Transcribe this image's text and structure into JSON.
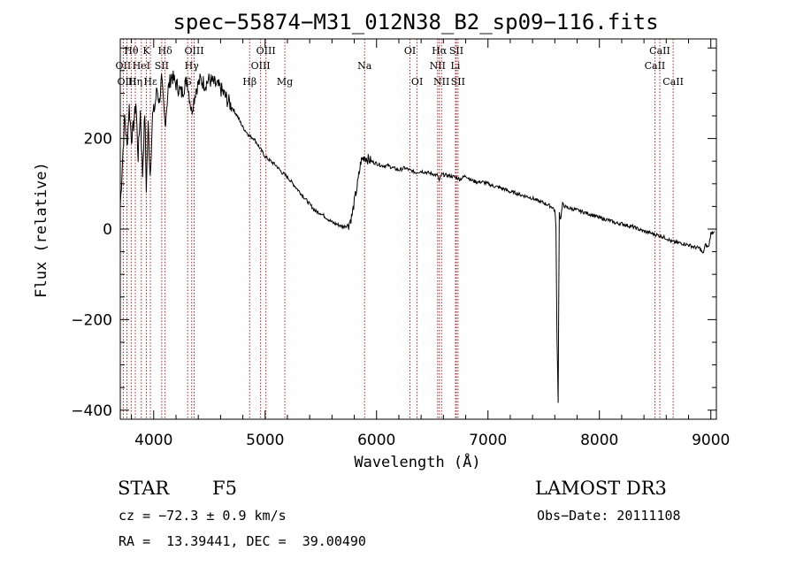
{
  "chart_data": {
    "type": "line",
    "title": "spec−55874−M31_012N38_B2_sp09−116.fits",
    "xlabel": "Wavelength (Å)",
    "ylabel": "Flux (relative)",
    "xlim": [
      3700,
      9050
    ],
    "ylim": [
      -420,
      420
    ],
    "xticks": [
      4000,
      5000,
      6000,
      7000,
      8000,
      9000
    ],
    "yticks": [
      -400,
      -200,
      0,
      200
    ],
    "ytick_labels": [
      "−400",
      "−200",
      "0",
      "200"
    ],
    "grid": false,
    "series": [
      {
        "name": "flux",
        "x": [
          3700,
          3720,
          3740,
          3760,
          3780,
          3800,
          3820,
          3840,
          3860,
          3880,
          3900,
          3920,
          3933,
          3950,
          3968,
          3990,
          4010,
          4030,
          4050,
          4070,
          4102,
          4130,
          4160,
          4200,
          4250,
          4300,
          4340,
          4380,
          4420,
          4460,
          4500,
          4550,
          4600,
          4650,
          4700,
          4750,
          4800,
          4861,
          4900,
          4950,
          5000,
          5050,
          5100,
          5150,
          5200,
          5250,
          5300,
          5350,
          5400,
          5450,
          5500,
          5550,
          5600,
          5650,
          5700,
          5750,
          5780,
          5800,
          5830,
          5860,
          5893,
          5920,
          5950,
          6000,
          6050,
          6100,
          6150,
          6200,
          6250,
          6300,
          6350,
          6400,
          6450,
          6500,
          6550,
          6563,
          6580,
          6600,
          6650,
          6700,
          6750,
          6800,
          6850,
          6900,
          6950,
          7000,
          7050,
          7100,
          7150,
          7200,
          7250,
          7300,
          7350,
          7400,
          7450,
          7500,
          7550,
          7580,
          7600,
          7610,
          7620,
          7630,
          7640,
          7650,
          7670,
          7700,
          7750,
          7800,
          7850,
          7900,
          7950,
          8000,
          8050,
          8100,
          8150,
          8200,
          8250,
          8300,
          8350,
          8400,
          8450,
          8500,
          8550,
          8600,
          8650,
          8700,
          8750,
          8800,
          8850,
          8900,
          8930,
          8950,
          8980,
          9000,
          9030
        ],
        "values": [
          50,
          150,
          250,
          180,
          270,
          200,
          230,
          280,
          160,
          260,
          120,
          260,
          90,
          230,
          120,
          250,
          270,
          310,
          280,
          330,
          230,
          310,
          340,
          320,
          300,
          330,
          260,
          310,
          330,
          320,
          330,
          320,
          310,
          290,
          270,
          250,
          225,
          205,
          200,
          180,
          160,
          150,
          140,
          125,
          115,
          100,
          85,
          70,
          55,
          40,
          35,
          25,
          15,
          10,
          5,
          10,
          30,
          60,
          100,
          150,
          160,
          155,
          150,
          145,
          140,
          140,
          135,
          130,
          135,
          130,
          125,
          128,
          125,
          122,
          118,
          105,
          120,
          120,
          118,
          115,
          110,
          118,
          108,
          104,
          104,
          100,
          95,
          92,
          88,
          82,
          80,
          75,
          72,
          68,
          62,
          58,
          52,
          48,
          40,
          5,
          -250,
          -380,
          40,
          20,
          55,
          48,
          45,
          42,
          38,
          34,
          30,
          25,
          22,
          18,
          13,
          12,
          8,
          5,
          0,
          -5,
          -8,
          -12,
          -15,
          -20,
          -28,
          -30,
          -32,
          -35,
          -40,
          -42,
          -55,
          -35,
          -40,
          -10,
          -5
        ]
      }
    ],
    "lines": [
      {
        "label": "Hθ",
        "wavelength": 3798,
        "row": 1
      },
      {
        "label": "OII",
        "wavelength": 3727,
        "row": 2
      },
      {
        "label": "OIII",
        "wavelength": 3760,
        "row": 3
      },
      {
        "label": "K",
        "wavelength": 3934,
        "row": 1
      },
      {
        "label": "HeI",
        "wavelength": 3889,
        "row": 2
      },
      {
        "label": "Hη",
        "wavelength": 3835,
        "row": 3
      },
      {
        "label": "Hε",
        "wavelength": 3970,
        "row": 3
      },
      {
        "label": "Hδ",
        "wavelength": 4102,
        "row": 1
      },
      {
        "label": "SII",
        "wavelength": 4072,
        "row": 2
      },
      {
        "label": "OIII",
        "wavelength": 4363,
        "row": 1
      },
      {
        "label": "Hγ",
        "wavelength": 4341,
        "row": 2
      },
      {
        "label": "G",
        "wavelength": 4305,
        "row": 3
      },
      {
        "label": "Hβ",
        "wavelength": 4861,
        "row": 3
      },
      {
        "label": "OIII",
        "wavelength": 5007,
        "row": 1
      },
      {
        "label": "OIII",
        "wavelength": 4959,
        "row": 2
      },
      {
        "label": "Mg",
        "wavelength": 5177,
        "row": 3
      },
      {
        "label": "Na",
        "wavelength": 5893,
        "row": 2
      },
      {
        "label": "OI",
        "wavelength": 6300,
        "row": 1
      },
      {
        "label": "OI",
        "wavelength": 6364,
        "row": 3
      },
      {
        "label": "Hα",
        "wavelength": 6563,
        "row": 1
      },
      {
        "label": "NII",
        "wavelength": 6548,
        "row": 2
      },
      {
        "label": "NII",
        "wavelength": 6583,
        "row": 3
      },
      {
        "label": "SII",
        "wavelength": 6716,
        "row": 1
      },
      {
        "label": "Li",
        "wavelength": 6708,
        "row": 2
      },
      {
        "label": "SII",
        "wavelength": 6731,
        "row": 3
      },
      {
        "label": "CaII",
        "wavelength": 8542,
        "row": 1
      },
      {
        "label": "CaII",
        "wavelength": 8498,
        "row": 2
      },
      {
        "label": "CaII",
        "wavelength": 8662,
        "row": 3
      }
    ]
  },
  "info": {
    "class_label": "STAR",
    "subclass": "F5",
    "survey": "LAMOST DR3",
    "cz": "cz = −72.3 ± 0.9 km/s",
    "obs_date": "Obs−Date: 20111108",
    "coords": "RA =  13.39441, DEC =  39.00490"
  },
  "colors": {
    "axis": "#000000",
    "spectrum": "#000000",
    "line_marker": "#b22222"
  }
}
